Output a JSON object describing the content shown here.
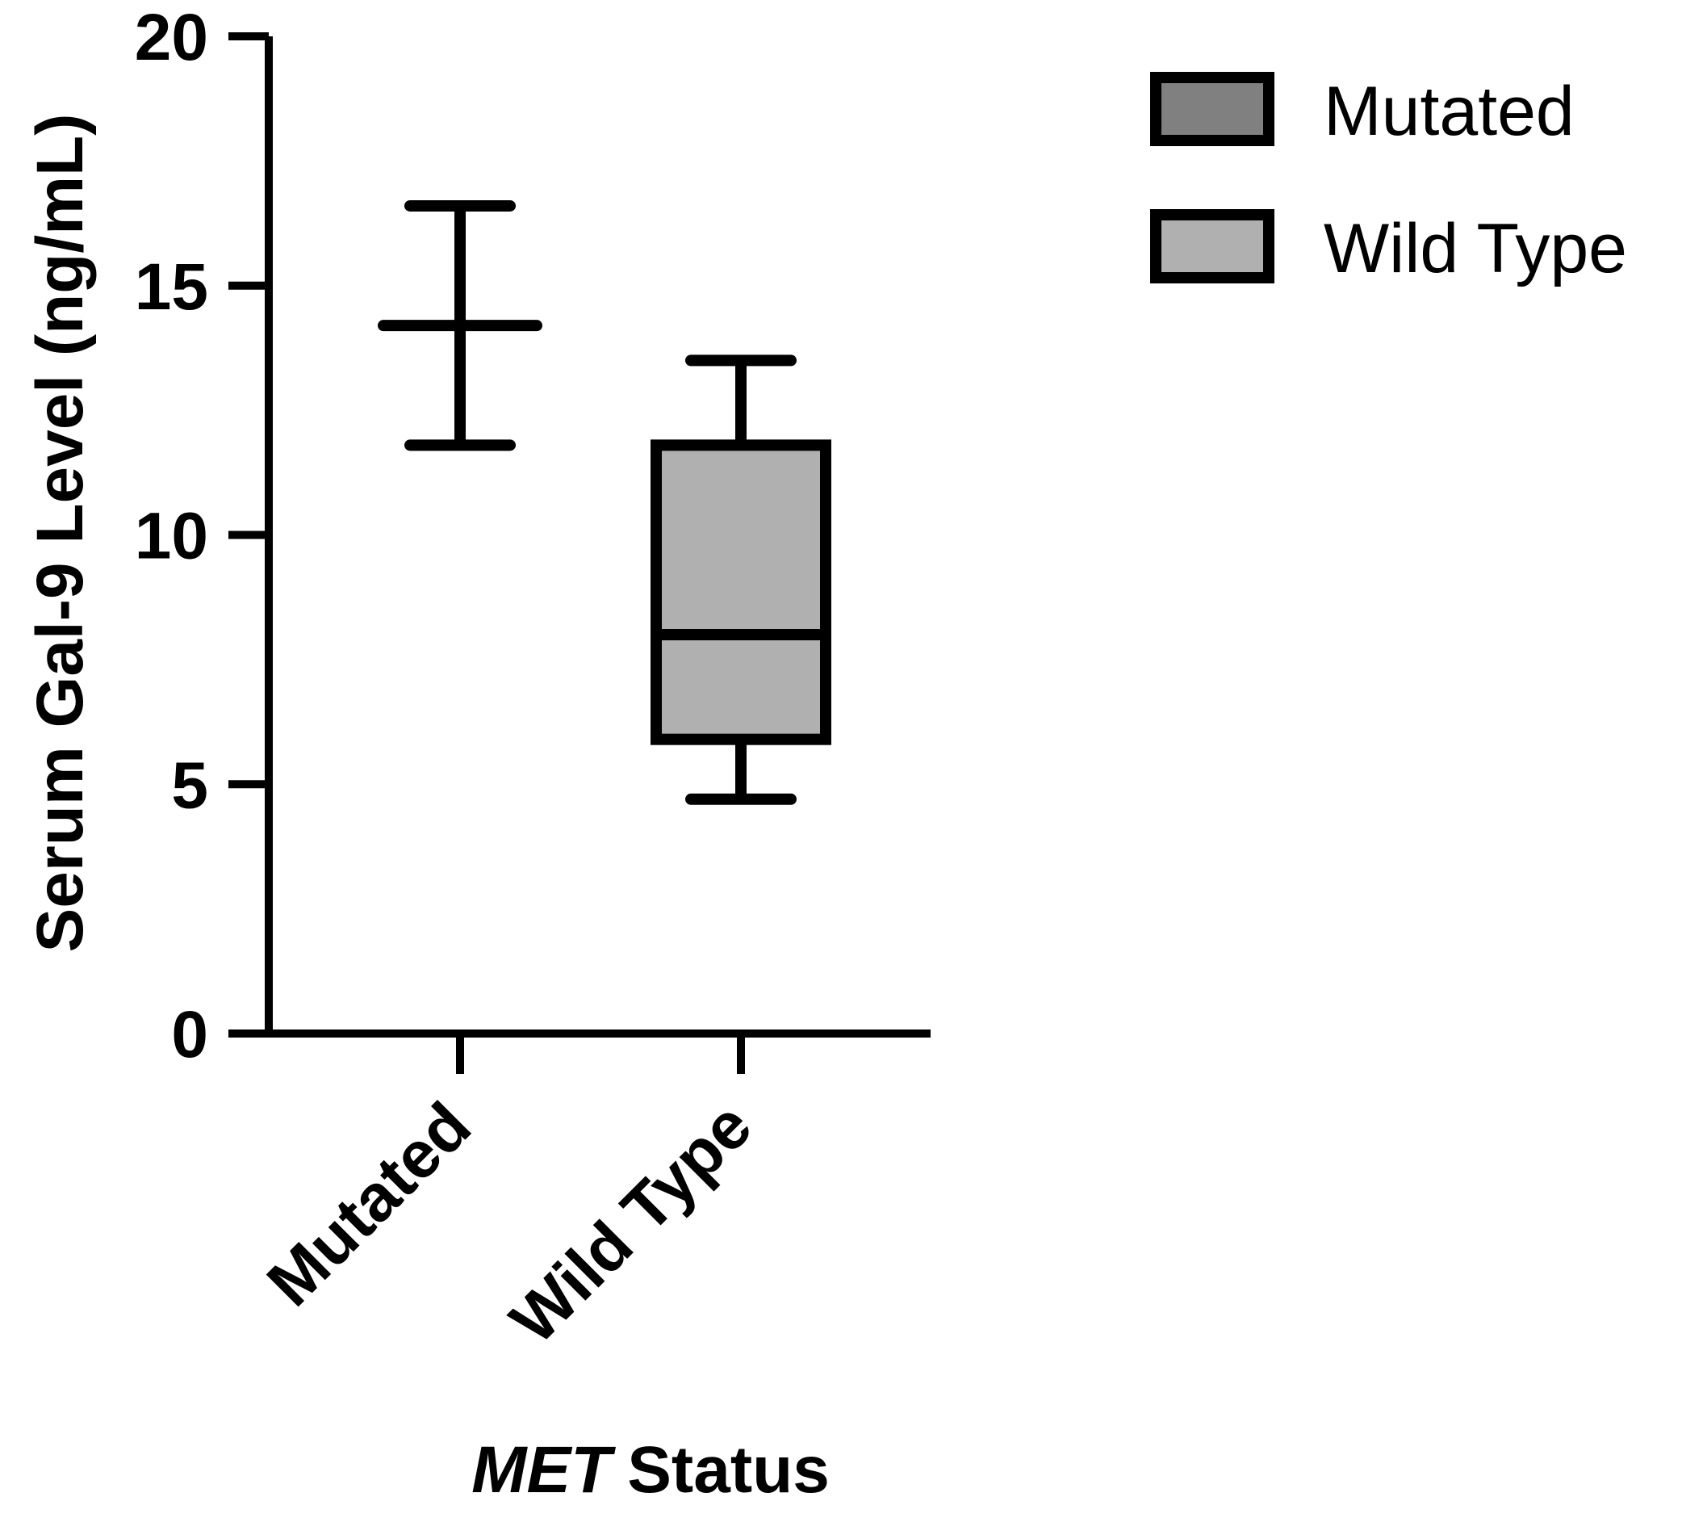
{
  "chart_data": {
    "type": "box",
    "ylabel": "Serum Gal-9 Level (ng/mL)",
    "xlabel_italic": "MET",
    "xlabel_rest": "Status",
    "ylim": [
      0,
      20
    ],
    "yticks": [
      "0",
      "5",
      "10",
      "15",
      "20"
    ],
    "categories": [
      "Mutated",
      "Wild Type"
    ],
    "series": [
      {
        "name": "Mutated",
        "color": "#808080",
        "min": 11.8,
        "q1": 14.2,
        "median": 14.2,
        "q3": 14.2,
        "max": 16.6
      },
      {
        "name": "Wild Type",
        "color": "#b0b0b0",
        "min": 4.7,
        "q1": 5.9,
        "median": 8.0,
        "q3": 11.8,
        "max": 13.5
      }
    ],
    "legend": {
      "placement": "top-right"
    },
    "grid": false
  }
}
